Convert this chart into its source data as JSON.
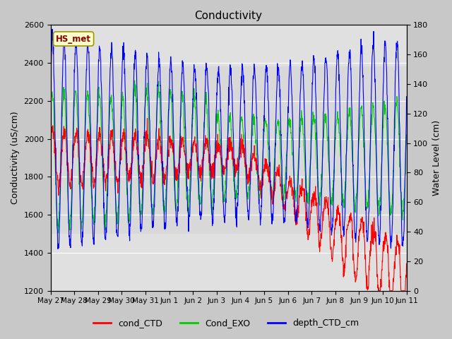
{
  "title": "Conductivity",
  "ylabel_left": "Conductivity (uS/cm)",
  "ylabel_right": "Water Level (cm)",
  "ylim_left": [
    1200,
    2600
  ],
  "ylim_right": [
    0,
    180
  ],
  "yticks_left": [
    1200,
    1400,
    1600,
    1800,
    2000,
    2200,
    2400,
    2600
  ],
  "yticks_right": [
    0,
    20,
    40,
    60,
    80,
    100,
    120,
    140,
    160,
    180
  ],
  "xtick_labels": [
    "May 27",
    "May 28",
    "May 29",
    "May 30",
    "May 31",
    "Jun 1",
    "Jun 2",
    "Jun 3",
    "Jun 4",
    "Jun 5",
    "Jun 6",
    "Jun 7",
    "Jun 8",
    "Jun 9",
    "Jun 10",
    "Jun 11"
  ],
  "legend_labels": [
    "cond_CTD",
    "Cond_EXO",
    "depth_CTD_cm"
  ],
  "line_colors": [
    "#ff0000",
    "#00cc00",
    "#0000ff"
  ],
  "station_label": "HS_met",
  "station_box_facecolor": "#ffffcc",
  "station_box_edgecolor": "#999900",
  "station_text_color": "#8b0000",
  "fig_facecolor": "#c8c8c8",
  "plot_facecolor": "#e0e0e0",
  "grid_color": "#ffffff",
  "shaded_band_color": "#d0d0d0"
}
